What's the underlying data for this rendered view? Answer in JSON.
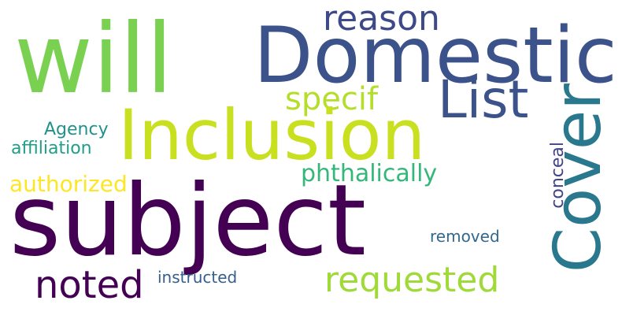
{
  "words": {
    "subject": {
      "text": "subject",
      "color": "#440154"
    },
    "will": {
      "text": "will",
      "color": "#7ad151"
    },
    "domestic": {
      "text": "Domestic",
      "color": "#3b528b"
    },
    "inclusion": {
      "text": "Inclusion",
      "color": "#c8e020"
    },
    "cover": {
      "text": "Cover",
      "color": "#2a788e"
    },
    "list": {
      "text": "List",
      "color": "#3b528b"
    },
    "reason": {
      "text": "reason",
      "color": "#3e4989"
    },
    "requested": {
      "text": "requested",
      "color": "#a0da39"
    },
    "noted": {
      "text": "noted",
      "color": "#440154"
    },
    "specif": {
      "text": "specif",
      "color": "#b5de2b"
    },
    "phthalically": {
      "text": "phthalically",
      "color": "#35b779"
    },
    "authorized": {
      "text": "authorized",
      "color": "#fde725"
    },
    "agency": {
      "text": "Agency",
      "color": "#21918c"
    },
    "affiliation": {
      "text": "affiliation",
      "color": "#1f9e89"
    },
    "conceal": {
      "text": "conceal",
      "color": "#414487"
    },
    "removed": {
      "text": "removed",
      "color": "#31688e"
    },
    "instructed": {
      "text": "instructed",
      "color": "#355f8d"
    }
  }
}
